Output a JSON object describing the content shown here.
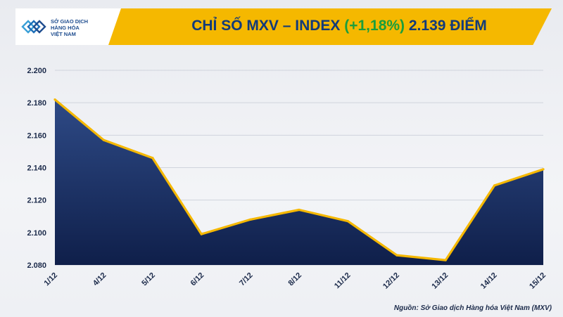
{
  "header": {
    "logo_lines": [
      "SỞ GIAO DỊCH",
      "HÀNG HÓA",
      "VIỆT NAM"
    ],
    "title_prefix": "CHỈ SỐ MXV – INDEX ",
    "title_change": "(+1,18%)",
    "title_suffix": " 2.139 ĐIỂM"
  },
  "colors": {
    "accent": "#f5b800",
    "title_text": "#123a7a",
    "change_green": "#1a9e3c",
    "area_top": "#2e4a86",
    "area_bottom": "#0f1f4a",
    "line": "#f5b800"
  },
  "source": "Nguồn: Sở Giao dịch Hàng hóa Việt Nam (MXV)",
  "chart_data": {
    "type": "area",
    "title": "CHỈ SỐ MXV – INDEX (+1,18%) 2.139 ĐIỂM",
    "categories": [
      "1/12",
      "4/12",
      "5/12",
      "6/12",
      "7/12",
      "8/12",
      "11/12",
      "12/12",
      "13/12",
      "14/12",
      "15/12"
    ],
    "values": [
      2182,
      2157,
      2146,
      2099,
      2108,
      2114,
      2107,
      2086,
      2083,
      2129,
      2139
    ],
    "y_ticks": [
      2080,
      2100,
      2120,
      2140,
      2160,
      2180,
      2200
    ],
    "y_tick_labels": [
      "2.080",
      "2.100",
      "2.120",
      "2.140",
      "2.160",
      "2.180",
      "2.200"
    ],
    "ylim": [
      2080,
      2200
    ],
    "grid": true,
    "xlabel": "",
    "ylabel": ""
  }
}
